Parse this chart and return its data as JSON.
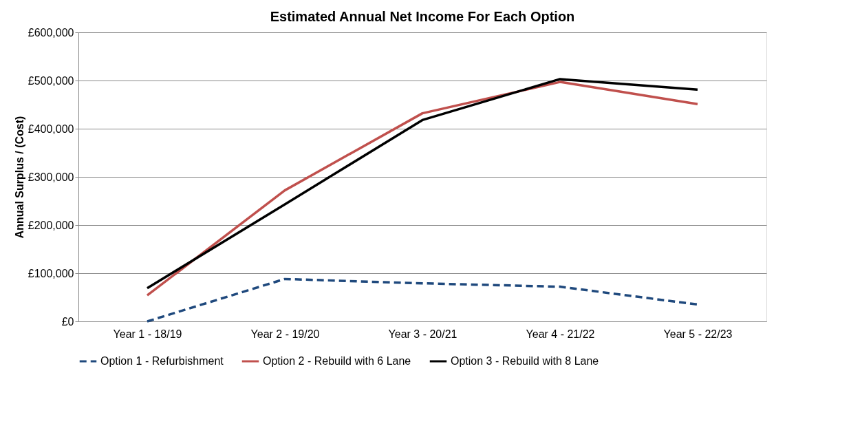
{
  "chart_data": {
    "type": "line",
    "title": "Estimated Annual Net Income For Each Option",
    "ylabel": "Annual Surplus / (Cost)",
    "categories": [
      "Year 1 - 18/19",
      "Year 2 - 19/20",
      "Year 3 - 20/21",
      "Year 4 - 21/22",
      "Year 5 - 22/23"
    ],
    "series": [
      {
        "name": "Option 1 - Refurbishment",
        "color": "#1f497d",
        "line_style": "dashed",
        "values": [
          0,
          88000,
          79000,
          72000,
          35000
        ]
      },
      {
        "name": "Option 2 - Rebuild with 6 Lane",
        "color": "#c0504d",
        "line_style": "solid",
        "values": [
          54000,
          272000,
          432000,
          497000,
          451000
        ]
      },
      {
        "name": "Option 3 - Rebuild with 8 Lane",
        "color": "#000000",
        "line_style": "solid",
        "values": [
          69000,
          243000,
          418000,
          503000,
          481000
        ]
      }
    ],
    "ylim": [
      0,
      600000
    ],
    "yticks": [
      {
        "value": 0,
        "label": "£0"
      },
      {
        "value": 100000,
        "label": "£100,000"
      },
      {
        "value": 200000,
        "label": "£200,000"
      },
      {
        "value": 300000,
        "label": "£300,000"
      },
      {
        "value": 400000,
        "label": "£400,000"
      },
      {
        "value": 500000,
        "label": "£500,000"
      },
      {
        "value": 600000,
        "label": "£600,000"
      }
    ],
    "grid": "y",
    "legend": "bottom",
    "marker": "none"
  }
}
